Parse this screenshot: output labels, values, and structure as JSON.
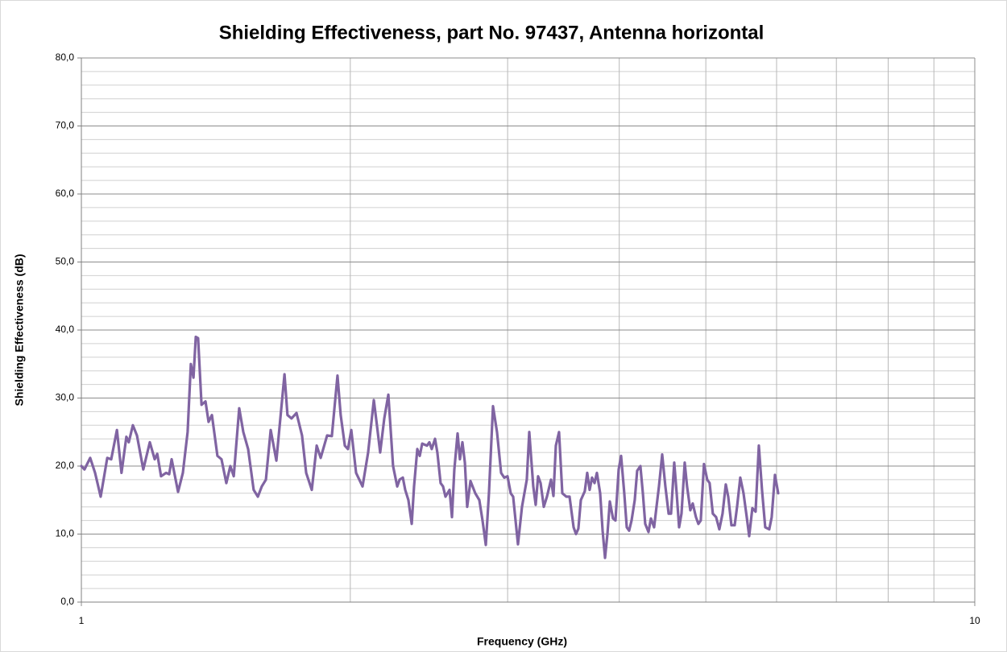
{
  "chart_data": {
    "type": "line",
    "title": "Shielding Effectiveness, part No. 97437,  Antenna horizontal",
    "x_label": "Frequency (GHz)",
    "y_label": "Shielding Effectiveness (dB)",
    "xscale": "log",
    "xlim": [
      1,
      10
    ],
    "xticks": [
      1,
      10
    ],
    "xminor": [
      2,
      3,
      4,
      5,
      6,
      7,
      8,
      9
    ],
    "ylim": [
      0,
      80
    ],
    "yticks": [
      {
        "value": 0,
        "label": "0,0"
      },
      {
        "value": 10,
        "label": "10,0"
      },
      {
        "value": 20,
        "label": "20,0"
      },
      {
        "value": 30,
        "label": "30,0"
      },
      {
        "value": 40,
        "label": "40,0"
      },
      {
        "value": 50,
        "label": "50,0"
      },
      {
        "value": 60,
        "label": "60,0"
      },
      {
        "value": 70,
        "label": "70,0"
      },
      {
        "value": 80,
        "label": "80,0"
      }
    ],
    "yminor_step": 2,
    "grid": true,
    "x": [
      1.0,
      1.008,
      1.023,
      1.036,
      1.051,
      1.069,
      1.08,
      1.096,
      1.109,
      1.123,
      1.13,
      1.142,
      1.154,
      1.173,
      1.193,
      1.208,
      1.216,
      1.228,
      1.244,
      1.254,
      1.262,
      1.283,
      1.299,
      1.315,
      1.326,
      1.335,
      1.343,
      1.351,
      1.363,
      1.377,
      1.388,
      1.4,
      1.42,
      1.435,
      1.453,
      1.468,
      1.481,
      1.502,
      1.518,
      1.537,
      1.559,
      1.576,
      1.592,
      1.609,
      1.629,
      1.653,
      1.67,
      1.688,
      1.701,
      1.719,
      1.741,
      1.766,
      1.785,
      1.811,
      1.834,
      1.853,
      1.884,
      1.907,
      1.935,
      1.951,
      1.972,
      1.988,
      2.005,
      2.03,
      2.064,
      2.094,
      2.125,
      2.142,
      2.16,
      2.183,
      2.206,
      2.233,
      2.257,
      2.271,
      2.29,
      2.304,
      2.323,
      2.343,
      2.357,
      2.377,
      2.392,
      2.407,
      2.437,
      2.452,
      2.467,
      2.488,
      2.503,
      2.524,
      2.54,
      2.556,
      2.583,
      2.599,
      2.615,
      2.637,
      2.653,
      2.67,
      2.687,
      2.703,
      2.726,
      2.76,
      2.789,
      2.812,
      2.836,
      2.859,
      2.889,
      2.919,
      2.95,
      2.974,
      2.999,
      3.024,
      3.043,
      3.081,
      3.113,
      3.152,
      3.172,
      3.205,
      3.225,
      3.245,
      3.266,
      3.293,
      3.32,
      3.355,
      3.376,
      3.397,
      3.425,
      3.454,
      3.49,
      3.519,
      3.556,
      3.578,
      3.6,
      3.623,
      3.66,
      3.683,
      3.706,
      3.729,
      3.753,
      3.776,
      3.808,
      3.832,
      3.856,
      3.88,
      3.904,
      3.936,
      3.961,
      3.994,
      4.019,
      4.052,
      4.078,
      4.103,
      4.129,
      4.163,
      4.189,
      4.224,
      4.251,
      4.277,
      4.313,
      4.34,
      4.376,
      4.403,
      4.431,
      4.468,
      4.505,
      4.543,
      4.571,
      4.609,
      4.638,
      4.667,
      4.696,
      4.735,
      4.764,
      4.804,
      4.834,
      4.874,
      4.905,
      4.935,
      4.976,
      5.018,
      5.049,
      5.091,
      5.134,
      5.177,
      5.22,
      5.264,
      5.297,
      5.341,
      5.386,
      5.419,
      5.464,
      5.51,
      5.556,
      5.591,
      5.637,
      5.684,
      5.732,
      5.779,
      5.827,
      5.888,
      5.925,
      5.975,
      6.025
    ],
    "series": [
      {
        "name": "Shielding Effectiveness",
        "color": "#8064a2",
        "values": [
          20.0,
          19.5,
          21.2,
          19,
          15.5,
          21.2,
          21,
          25.3,
          19,
          24.3,
          23.5,
          26,
          24.5,
          19.5,
          23.5,
          21,
          21.8,
          18.5,
          19,
          18.8,
          21,
          16.2,
          19,
          25,
          35,
          33,
          39,
          38.8,
          29,
          29.5,
          26.5,
          27.5,
          21.5,
          21,
          17.5,
          20,
          18.5,
          28.5,
          25,
          22.5,
          16.5,
          15.5,
          17,
          18,
          25.3,
          20.8,
          27,
          33.5,
          27.5,
          27,
          27.8,
          24.5,
          19,
          16.5,
          23,
          21.2,
          24.5,
          24.4,
          33.3,
          27.5,
          23,
          22.5,
          25.3,
          19,
          17,
          22,
          29.7,
          26,
          22,
          27,
          30.5,
          20,
          17,
          18,
          18.3,
          16.5,
          15,
          11.5,
          17,
          22.5,
          21.5,
          23.3,
          23,
          23.5,
          22.5,
          24,
          22,
          17.5,
          17,
          15.5,
          16.5,
          12.5,
          19.5,
          24.8,
          21,
          23.5,
          20.5,
          14,
          17.8,
          16,
          15,
          12,
          8.4,
          16,
          28.8,
          25,
          19,
          18.3,
          18.5,
          16,
          15.5,
          8.5,
          14,
          18,
          25,
          17,
          14.3,
          18.5,
          17.5,
          14,
          15.5,
          18,
          15.6,
          23,
          25,
          16,
          15.5,
          15.5,
          11,
          10,
          10.8,
          15,
          16.3,
          19,
          16.5,
          18.3,
          17.5,
          19,
          16,
          10.5,
          6.5,
          10,
          14.8,
          12.3,
          12,
          19.5,
          21.5,
          16,
          11,
          10.5,
          12,
          15,
          19.3,
          20,
          16,
          11.5,
          10.3,
          12.3,
          11,
          14,
          17,
          21.7,
          17,
          13,
          13,
          20.5,
          16,
          11,
          13,
          20.5,
          17,
          13.5,
          14.5,
          12.5,
          11.5,
          12,
          20.3,
          18,
          17.5,
          13,
          12.5,
          10.7,
          13,
          17.3,
          15.5,
          11.3,
          11.3,
          14,
          18.3,
          16,
          12.5,
          9.7,
          13.8,
          13.3,
          23,
          16.5,
          11,
          10.7,
          12.5,
          18.7,
          16
        ]
      }
    ]
  }
}
